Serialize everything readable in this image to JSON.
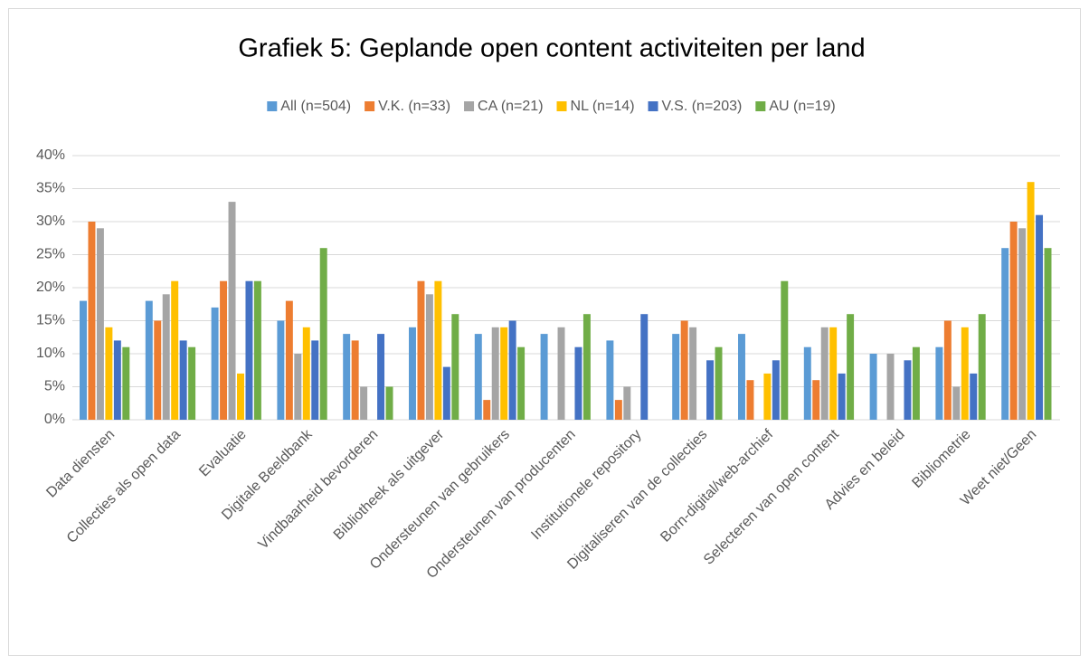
{
  "chart_data": {
    "type": "bar",
    "title": "Grafiek 5: Geplande open content activiteiten per land",
    "categories": [
      "Data diensten",
      "Collecties als open data",
      "Evaluatie",
      "Digitale Beeldbank",
      "Vindbaarheid bevorderen",
      "Bibliotheek als uitgever",
      "Ondersteunen van gebruikers",
      "Ondersteunen van producenten",
      "Institutionele repository",
      "Digitaliseren van de collecties",
      "Born-digital/web-archief",
      "Selecteren van open content",
      "Advies en beleid",
      "Bibliometrie",
      "Weet niet/Geen"
    ],
    "series": [
      {
        "name": "All (n=504)",
        "color": "#5B9BD5",
        "values": [
          18,
          18,
          17,
          15,
          13,
          14,
          13,
          13,
          12,
          13,
          13,
          11,
          10,
          11,
          26
        ]
      },
      {
        "name": "V.K. (n=33)",
        "color": "#ED7D31",
        "values": [
          30,
          15,
          21,
          18,
          12,
          21,
          3,
          0,
          3,
          15,
          6,
          6,
          0,
          15,
          30
        ]
      },
      {
        "name": "CA (n=21)",
        "color": "#A5A5A5",
        "values": [
          29,
          19,
          33,
          10,
          5,
          19,
          14,
          14,
          5,
          14,
          0,
          14,
          10,
          5,
          29
        ]
      },
      {
        "name": "NL (n=14)",
        "color": "#FFC000",
        "values": [
          14,
          21,
          7,
          14,
          0,
          21,
          14,
          0,
          0,
          0,
          7,
          14,
          0,
          14,
          36
        ]
      },
      {
        "name": "V.S. (n=203)",
        "color": "#4472C4",
        "values": [
          12,
          12,
          21,
          12,
          13,
          8,
          15,
          11,
          16,
          9,
          9,
          7,
          9,
          7,
          31
        ]
      },
      {
        "name": "AU (n=19)",
        "color": "#70AD47",
        "values": [
          11,
          11,
          21,
          26,
          5,
          16,
          11,
          16,
          0,
          11,
          21,
          16,
          11,
          16,
          26
        ]
      }
    ],
    "ylim": [
      0,
      40
    ],
    "yticks": [
      {
        "value": 0,
        "label": "0%"
      },
      {
        "value": 5,
        "label": "5%"
      },
      {
        "value": 10,
        "label": "10%"
      },
      {
        "value": 15,
        "label": "15%"
      },
      {
        "value": 20,
        "label": "20%"
      },
      {
        "value": 25,
        "label": "25%"
      },
      {
        "value": 30,
        "label": "30%"
      },
      {
        "value": 35,
        "label": "35%"
      },
      {
        "value": 40,
        "label": "40%"
      }
    ],
    "grid": true,
    "legend": "top"
  }
}
